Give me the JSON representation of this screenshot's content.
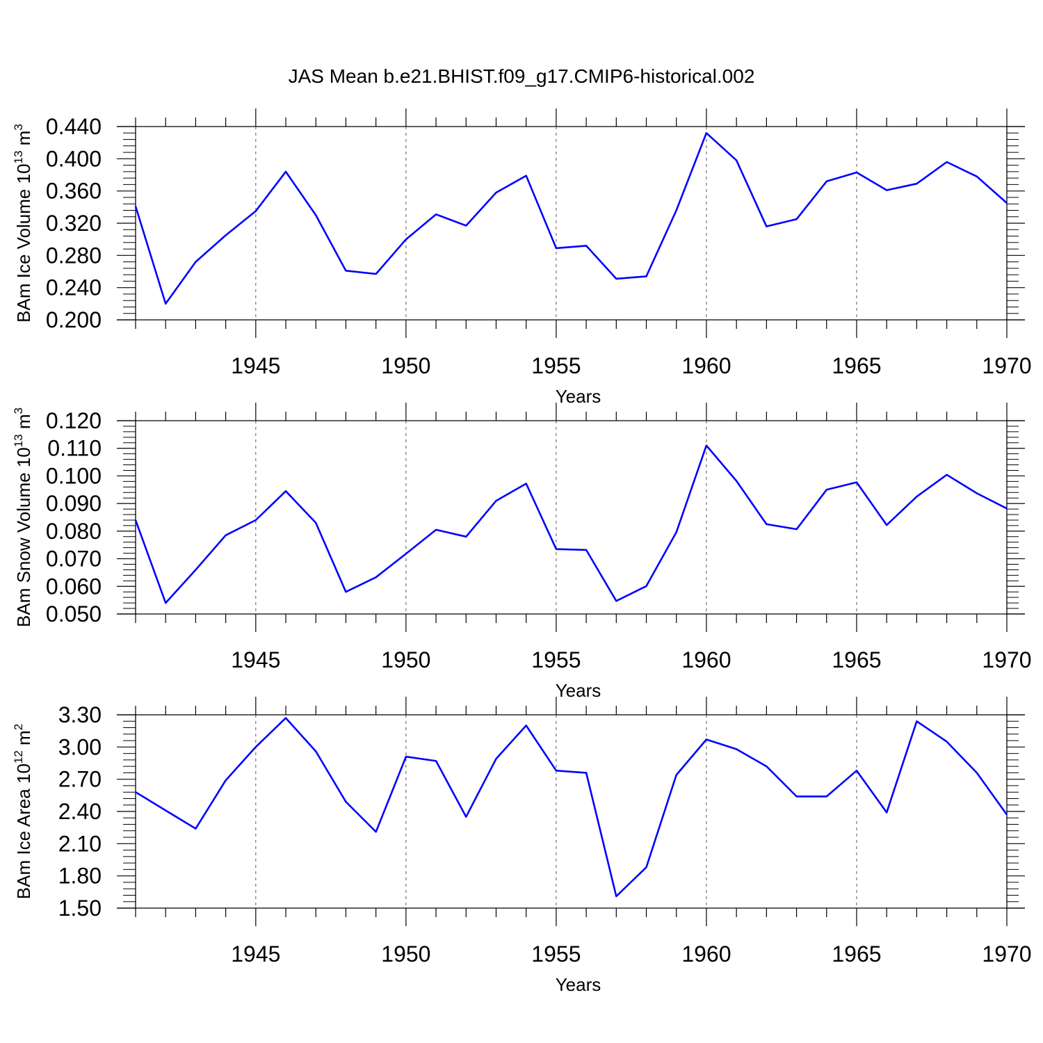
{
  "title": "JAS Mean b.e21.BHIST.f09_g17.CMIP6-historical.002",
  "colors": {
    "line": "#0000ff",
    "axis": "#000000",
    "grid": "#555555"
  },
  "chart_data": [
    {
      "type": "line",
      "xlabel": "Years",
      "ylabel": {
        "text": "BAm Ice Volume 10",
        "exp": "13",
        "unit": " m",
        "unit_exp": "3"
      },
      "xlim": [
        1941,
        1970
      ],
      "ylim": [
        0.2,
        0.44
      ],
      "xticks": [
        1945,
        1950,
        1955,
        1960,
        1965,
        1970
      ],
      "yticks": [
        "0.200",
        "0.240",
        "0.280",
        "0.320",
        "0.360",
        "0.400",
        "0.440"
      ],
      "x": [
        1941,
        1942,
        1943,
        1944,
        1945,
        1946,
        1947,
        1948,
        1949,
        1950,
        1951,
        1952,
        1953,
        1954,
        1955,
        1956,
        1957,
        1958,
        1959,
        1960,
        1961,
        1962,
        1963,
        1964,
        1965,
        1966,
        1967,
        1968,
        1969,
        1970
      ],
      "values": [
        0.341,
        0.22,
        0.272,
        0.305,
        0.335,
        0.384,
        0.33,
        0.261,
        0.257,
        0.3,
        0.331,
        0.317,
        0.358,
        0.379,
        0.289,
        0.292,
        0.251,
        0.254,
        0.336,
        0.432,
        0.398,
        0.316,
        0.325,
        0.372,
        0.383,
        0.361,
        0.369,
        0.396,
        0.378,
        0.345
      ]
    },
    {
      "type": "line",
      "xlabel": "Years",
      "ylabel": {
        "text": "BAm Snow Volume 10",
        "exp": "13",
        "unit": " m",
        "unit_exp": "3"
      },
      "xlim": [
        1941,
        1970
      ],
      "ylim": [
        0.05,
        0.12
      ],
      "xticks": [
        1945,
        1950,
        1955,
        1960,
        1965,
        1970
      ],
      "yticks": [
        "0.050",
        "0.060",
        "0.070",
        "0.080",
        "0.090",
        "0.100",
        "0.110",
        "0.120"
      ],
      "x": [
        1941,
        1942,
        1943,
        1944,
        1945,
        1946,
        1947,
        1948,
        1949,
        1950,
        1951,
        1952,
        1953,
        1954,
        1955,
        1956,
        1957,
        1958,
        1959,
        1960,
        1961,
        1962,
        1963,
        1964,
        1965,
        1966,
        1967,
        1968,
        1969,
        1970
      ],
      "values": [
        0.084,
        0.054,
        0.066,
        0.0785,
        0.084,
        0.0945,
        0.083,
        0.058,
        0.0633,
        0.0718,
        0.0805,
        0.078,
        0.091,
        0.0972,
        0.0735,
        0.0732,
        0.0547,
        0.0601,
        0.0796,
        0.111,
        0.0982,
        0.0825,
        0.0807,
        0.095,
        0.0977,
        0.0822,
        0.0925,
        0.1004,
        0.0937,
        0.0882
      ]
    },
    {
      "type": "line",
      "xlabel": "Years",
      "ylabel": {
        "text": "BAm Ice Area 10",
        "exp": "12",
        "unit": " m",
        "unit_exp": "2"
      },
      "xlim": [
        1941,
        1970
      ],
      "ylim": [
        1.5,
        3.3
      ],
      "xticks": [
        1945,
        1950,
        1955,
        1960,
        1965,
        1970
      ],
      "yticks": [
        "1.50",
        "1.80",
        "2.10",
        "2.40",
        "2.70",
        "3.00",
        "3.30"
      ],
      "x": [
        1941,
        1942,
        1943,
        1944,
        1945,
        1946,
        1947,
        1948,
        1949,
        1950,
        1951,
        1952,
        1953,
        1954,
        1955,
        1956,
        1957,
        1958,
        1959,
        1960,
        1961,
        1962,
        1963,
        1964,
        1965,
        1966,
        1967,
        1968,
        1969,
        1970
      ],
      "values": [
        2.58,
        2.41,
        2.24,
        2.69,
        3.0,
        3.27,
        2.96,
        2.49,
        2.21,
        2.91,
        2.87,
        2.35,
        2.89,
        3.2,
        2.78,
        2.76,
        1.61,
        1.88,
        2.74,
        3.07,
        2.98,
        2.82,
        2.54,
        2.54,
        2.78,
        2.39,
        3.24,
        3.05,
        2.76,
        2.37
      ]
    }
  ]
}
